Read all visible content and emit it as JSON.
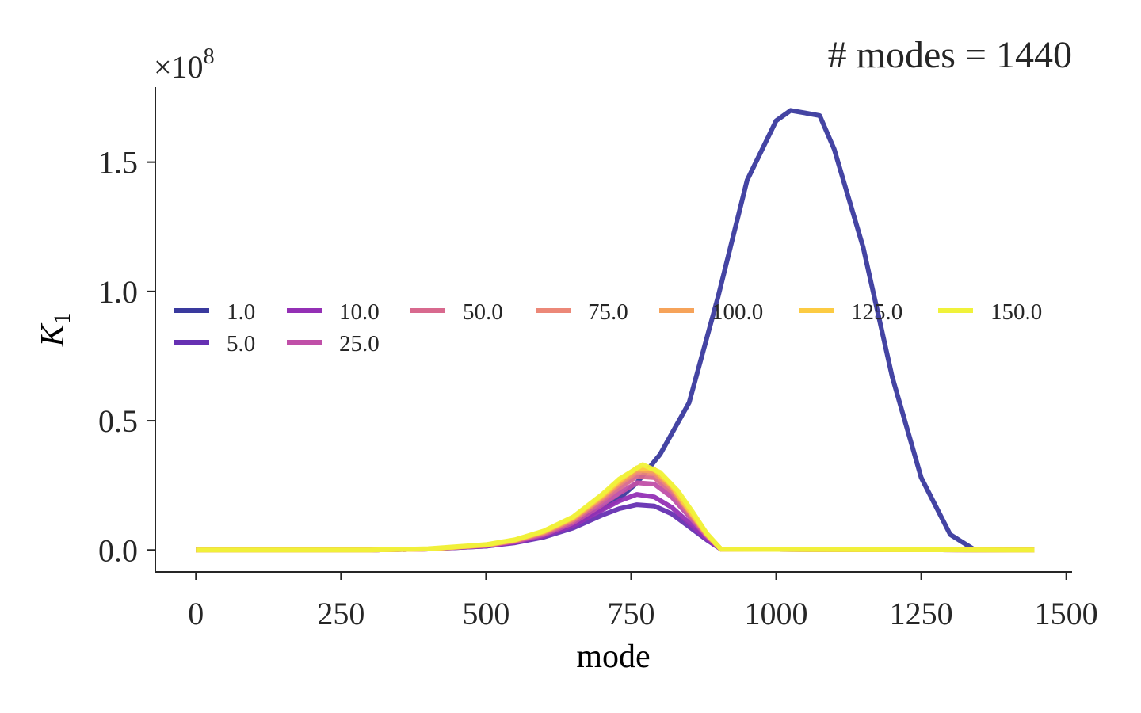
{
  "chart_data": {
    "type": "line",
    "title": "# modes = 1440",
    "xlabel": "mode",
    "ylabel": "K",
    "ylabel_subscript": "1",
    "y_multiplier_base": "×10",
    "y_multiplier_exp": "8",
    "xlim": [
      -70,
      1510
    ],
    "ylim": [
      -0.085,
      1.79
    ],
    "x_ticks": [
      0,
      250,
      500,
      750,
      1000,
      1250,
      1500
    ],
    "x_tick_labels": [
      "0",
      "250",
      "500",
      "750",
      "1000",
      "1250",
      "1500"
    ],
    "y_ticks": [
      0.0,
      0.5,
      1.0,
      1.5
    ],
    "y_tick_labels": [
      "0.0",
      "0.5",
      "1.0",
      "1.5"
    ],
    "grid": false,
    "legend_placement": "center-left",
    "series": [
      {
        "name": "1.0",
        "color": "#3a3a9e",
        "x": [
          0,
          300,
          400,
          500,
          550,
          600,
          650,
          700,
          730,
          760,
          800,
          850,
          900,
          950,
          1000,
          1025,
          1050,
          1075,
          1100,
          1150,
          1200,
          1250,
          1300,
          1340,
          1445
        ],
        "y": [
          0,
          0,
          0.004,
          0.015,
          0.03,
          0.055,
          0.1,
          0.16,
          0.2,
          0.26,
          0.37,
          0.57,
          0.98,
          1.43,
          1.66,
          1.7,
          1.69,
          1.68,
          1.55,
          1.17,
          0.67,
          0.28,
          0.06,
          0.004,
          0
        ]
      },
      {
        "name": "5.0",
        "color": "#6630b2",
        "x": [
          0,
          300,
          400,
          500,
          550,
          600,
          650,
          700,
          730,
          760,
          790,
          820,
          850,
          880,
          905,
          1445
        ],
        "y": [
          0,
          0,
          0.004,
          0.015,
          0.028,
          0.05,
          0.085,
          0.135,
          0.16,
          0.175,
          0.17,
          0.14,
          0.09,
          0.04,
          0.003,
          0
        ]
      },
      {
        "name": "10.0",
        "color": "#9430b5",
        "x": [
          0,
          300,
          400,
          500,
          550,
          600,
          650,
          700,
          730,
          760,
          790,
          820,
          850,
          880,
          905,
          1445
        ],
        "y": [
          0,
          0,
          0.004,
          0.016,
          0.03,
          0.055,
          0.095,
          0.155,
          0.19,
          0.215,
          0.205,
          0.165,
          0.105,
          0.045,
          0.003,
          0
        ]
      },
      {
        "name": "25.0",
        "color": "#c04fa8",
        "x": [
          0,
          300,
          400,
          500,
          550,
          600,
          650,
          700,
          730,
          760,
          790,
          820,
          850,
          880,
          905,
          1445
        ],
        "y": [
          0,
          0,
          0.004,
          0.017,
          0.033,
          0.06,
          0.105,
          0.175,
          0.22,
          0.26,
          0.255,
          0.205,
          0.13,
          0.055,
          0.003,
          0
        ]
      },
      {
        "name": "50.0",
        "color": "#d8698e",
        "x": [
          0,
          300,
          400,
          500,
          550,
          600,
          650,
          700,
          730,
          760,
          790,
          820,
          850,
          880,
          905,
          1445
        ],
        "y": [
          0,
          0,
          0.004,
          0.018,
          0.035,
          0.064,
          0.112,
          0.19,
          0.24,
          0.285,
          0.28,
          0.225,
          0.14,
          0.058,
          0.003,
          0
        ]
      },
      {
        "name": "75.0",
        "color": "#ec8878",
        "x": [
          0,
          300,
          400,
          500,
          550,
          600,
          650,
          700,
          730,
          760,
          790,
          820,
          850,
          880,
          905,
          1445
        ],
        "y": [
          0,
          0,
          0.004,
          0.019,
          0.037,
          0.068,
          0.118,
          0.2,
          0.255,
          0.3,
          0.295,
          0.238,
          0.148,
          0.06,
          0.003,
          0
        ]
      },
      {
        "name": "100.0",
        "color": "#f6a35a",
        "x": [
          0,
          300,
          400,
          500,
          550,
          600,
          650,
          700,
          730,
          760,
          790,
          820,
          850,
          880,
          905,
          1445
        ],
        "y": [
          0,
          0,
          0.004,
          0.02,
          0.038,
          0.07,
          0.122,
          0.205,
          0.262,
          0.31,
          0.305,
          0.245,
          0.152,
          0.062,
          0.003,
          0
        ]
      },
      {
        "name": "125.0",
        "color": "#fccb43",
        "x": [
          0,
          300,
          400,
          500,
          550,
          600,
          650,
          700,
          730,
          760,
          790,
          820,
          850,
          880,
          905,
          1445
        ],
        "y": [
          0,
          0,
          0.004,
          0.02,
          0.039,
          0.072,
          0.125,
          0.21,
          0.268,
          0.318,
          0.312,
          0.25,
          0.155,
          0.063,
          0.003,
          0
        ]
      },
      {
        "name": "150.0",
        "color": "#f0f23a",
        "x": [
          0,
          300,
          400,
          500,
          550,
          600,
          650,
          700,
          730,
          770,
          800,
          830,
          855,
          880,
          905,
          1445
        ],
        "y": [
          0,
          0,
          0.005,
          0.021,
          0.04,
          0.074,
          0.128,
          0.215,
          0.275,
          0.33,
          0.3,
          0.23,
          0.15,
          0.065,
          0.003,
          0
        ]
      }
    ]
  }
}
